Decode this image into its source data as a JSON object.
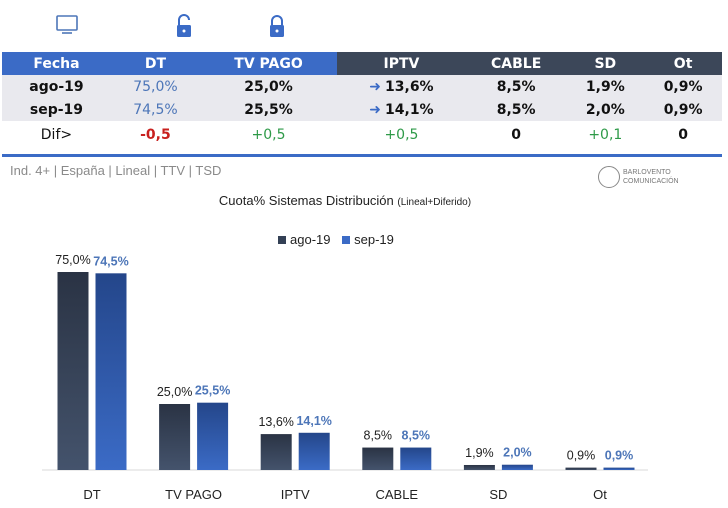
{
  "icons": [
    "monitor-icon",
    "lock-open-icon",
    "lock-icon"
  ],
  "table": {
    "headers": [
      "Fecha",
      "DT",
      "TV PAGO",
      "IPTV",
      "CABLE",
      "SD",
      "Ot"
    ],
    "rows": [
      [
        "ago-19",
        "75,0%",
        "25,0%",
        "13,6%",
        "8,5%",
        "1,9%",
        "0,9%"
      ],
      [
        "sep-19",
        "74,5%",
        "25,5%",
        "14,1%",
        "8,5%",
        "2,0%",
        "0,9%"
      ],
      [
        "Dif>",
        "-0,5",
        "+0,5",
        "+0,5",
        "0",
        "+0,1",
        "0"
      ]
    ]
  },
  "subtitle": "Ind. 4+ | España | Lineal | TTV | TSD",
  "logo": "BARLOVENTO COMUNICACIÓN",
  "colors": {
    "header_blue": "#3b6bc6",
    "header_dark": "#3c4759",
    "series1": "#334055",
    "series2": "#2f5fb0",
    "label2": "#4d76b8"
  },
  "chart_data": {
    "type": "bar",
    "title": "Cuota% Sistemas Distribución",
    "title_note": "(Lineal+Diferido)",
    "categories": [
      "DT",
      "TV PAGO",
      "IPTV",
      "CABLE",
      "SD",
      "Ot"
    ],
    "series": [
      {
        "name": "ago-19",
        "values": [
          75.0,
          25.0,
          13.6,
          8.5,
          1.9,
          0.9
        ],
        "labels": [
          "75,0%",
          "25,0%",
          "13,6%",
          "8,5%",
          "1,9%",
          "0,9%"
        ]
      },
      {
        "name": "sep-19",
        "values": [
          74.5,
          25.5,
          14.1,
          8.5,
          2.0,
          0.9
        ],
        "labels": [
          "74,5%",
          "25,5%",
          "14,1%",
          "8,5%",
          "2,0%",
          "0,9%"
        ]
      }
    ],
    "legend": "top-center",
    "grid": false
  }
}
